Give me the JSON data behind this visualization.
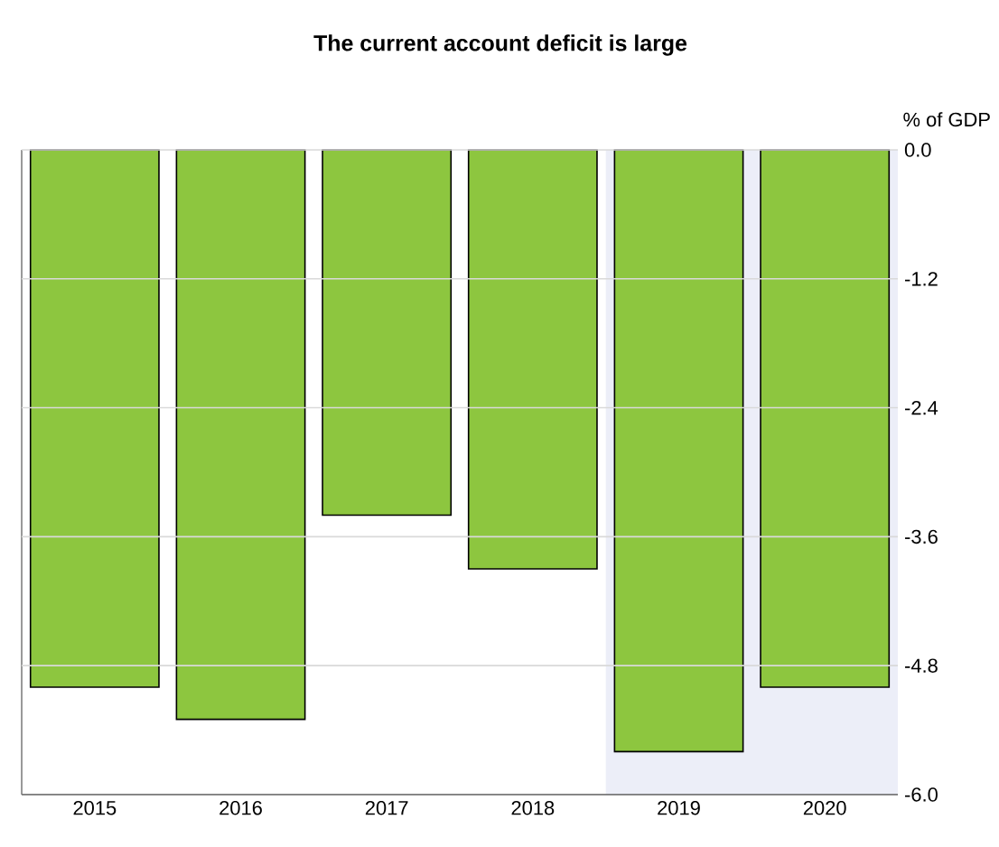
{
  "chart_data": {
    "type": "bar",
    "title": "The current account deficit is large",
    "ylabel": "% of GDP",
    "categories": [
      "2015",
      "2016",
      "2017",
      "2018",
      "2019",
      "2020"
    ],
    "values": [
      -5.0,
      -5.3,
      -3.4,
      -3.9,
      -5.6,
      -5.0
    ],
    "color": "#8dc63f",
    "ylim": [
      -6.0,
      0.0
    ],
    "yticks": [
      {
        "value": 0,
        "label": "0.0"
      },
      {
        "value": -1.2,
        "label": "-1.2"
      },
      {
        "value": -2.4,
        "label": "-2.4"
      },
      {
        "value": -3.6,
        "label": "-3.6"
      },
      {
        "value": -4.8,
        "label": "-4.8"
      },
      {
        "value": -6.0,
        "label": "-6.0"
      }
    ],
    "bands": [
      {
        "axis": "x",
        "from": "2019",
        "to": "2020",
        "color": "#eceef8"
      }
    ],
    "grid": "y"
  }
}
